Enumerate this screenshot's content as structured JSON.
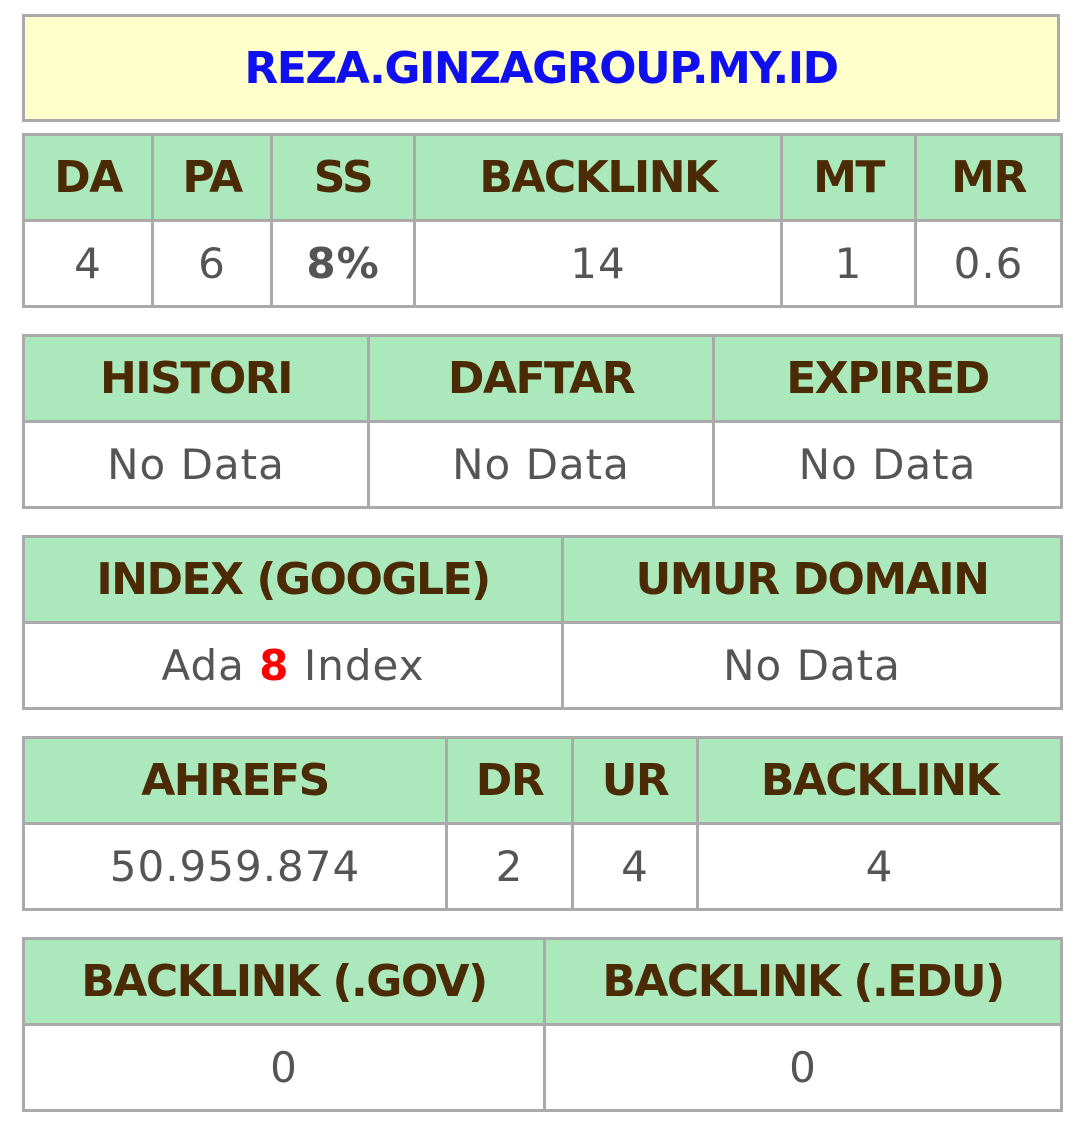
{
  "title": "REZA.GINZAGROUP.MY.ID",
  "moz": {
    "headers": [
      "DA",
      "PA",
      "SS",
      "BACKLINK",
      "MT",
      "MR"
    ],
    "values": [
      "4",
      "6",
      "8%",
      "14",
      "1",
      "0.6"
    ]
  },
  "history": {
    "headers": [
      "HISTORI",
      "DAFTAR",
      "EXPIRED"
    ],
    "values": [
      "No Data",
      "No Data",
      "No Data"
    ]
  },
  "index": {
    "headers": [
      "INDEX (GOOGLE)",
      "UMUR DOMAIN"
    ],
    "index_prefix": "Ada",
    "index_count": "8",
    "index_suffix": "Index",
    "umur_value": "No Data"
  },
  "ahrefs": {
    "headers": [
      "AHREFS",
      "DR",
      "UR",
      "BACKLINK"
    ],
    "values": [
      "50.959.874",
      "2",
      "4",
      "4"
    ]
  },
  "special": {
    "headers": [
      "BACKLINK (.GOV)",
      "BACKLINK (.EDU)"
    ],
    "values": [
      "0",
      "0"
    ]
  },
  "colors": {
    "title_bg": "#ffffcc",
    "title_text": "#1010ee",
    "header_bg": "#abe9bd",
    "header_text": "#4a2b06",
    "ss_value": "#068206",
    "index_count": "#ff0000"
  }
}
